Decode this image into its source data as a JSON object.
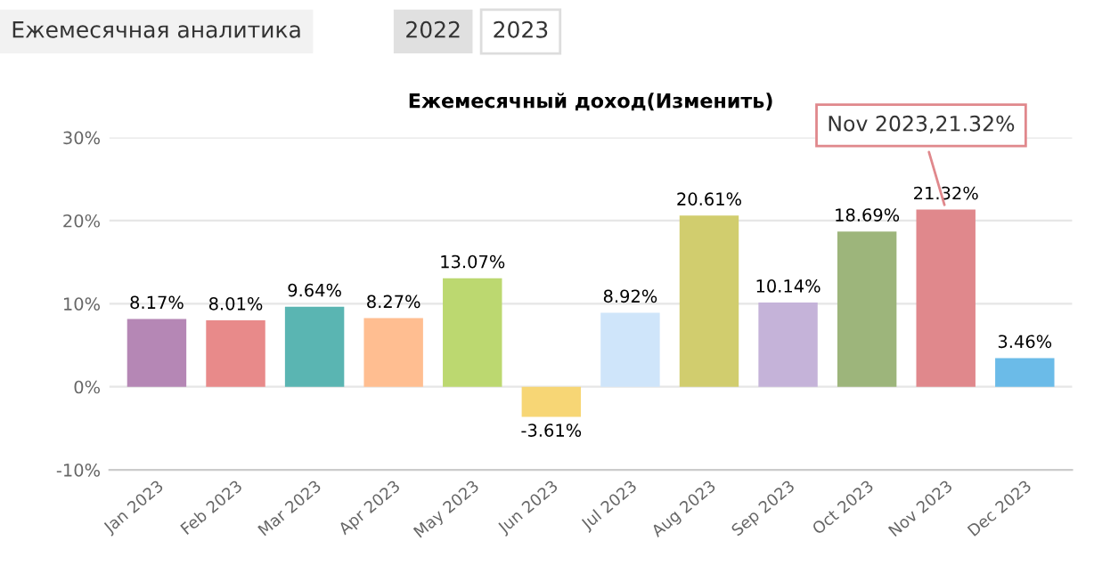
{
  "chart_data": {
    "type": "bar",
    "title": "Ежемесячный доход(Изменить)",
    "categories": [
      "Jan 2023",
      "Feb 2023",
      "Mar 2023",
      "Apr 2023",
      "May 2023",
      "Jun 2023",
      "Jul 2023",
      "Aug 2023",
      "Sep 2023",
      "Oct 2023",
      "Nov 2023",
      "Dec 2023"
    ],
    "values": [
      8.17,
      8.01,
      9.64,
      8.27,
      13.07,
      -3.61,
      8.92,
      20.61,
      10.14,
      18.69,
      21.32,
      3.46
    ],
    "colors": [
      "#b587b5",
      "#e88a8a",
      "#5ab5b2",
      "#ffbe91",
      "#bcd870",
      "#f7d675",
      "#cfe5fa",
      "#d1cd6e",
      "#c5b3d9",
      "#9db57b",
      "#e0888c",
      "#6bbbe8"
    ],
    "value_labels": [
      "8.17%",
      "8.01%",
      "9.64%",
      "8.27%",
      "13.07%",
      "-3.61%",
      "8.92%",
      "20.61%",
      "10.14%",
      "18.69%",
      "21.32%",
      "3.46%"
    ],
    "ylim": [
      -10,
      30
    ],
    "yticks": [
      {
        "value": -10,
        "label": "-10%"
      },
      {
        "value": 0,
        "label": "0%"
      },
      {
        "value": 10,
        "label": "10%"
      },
      {
        "value": 20,
        "label": "20%"
      },
      {
        "value": 30,
        "label": "30%"
      }
    ],
    "grid": "y",
    "annotations": [
      "Ежемесячная аналитика",
      "2022",
      "2023",
      {
        "text": "Nov 2023,21.32%",
        "x": "Nov 2023",
        "y": 21.32
      }
    ]
  }
}
